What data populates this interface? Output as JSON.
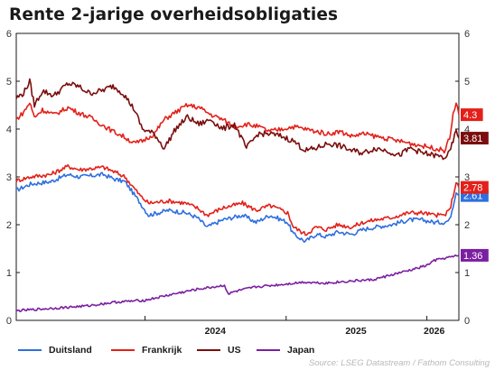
{
  "title": "Rente 2-jarige overheidsobligaties",
  "source": "Source: LSEG Datastream / Fathom Consulting",
  "chart_data": {
    "type": "line",
    "ylim": [
      0,
      6
    ],
    "yticks": [
      "0",
      "1",
      "2",
      "3",
      "4",
      "5",
      "6"
    ],
    "xlim": [
      "2023-02-01",
      "2026-03-25"
    ],
    "xticks": [
      {
        "label": "2024",
        "at": "2024-07-01"
      },
      {
        "label": "2025",
        "at": "2025-07-01"
      },
      {
        "label": "2026",
        "at": "2026-01-20"
      }
    ],
    "grid": false,
    "legend_position": "bottom",
    "series": [
      {
        "name": "Duitsland",
        "color": "#2e6fdf",
        "end_label": "2.61",
        "points": [
          [
            "2023-02-01",
            2.72
          ],
          [
            "2023-03-10",
            2.85
          ],
          [
            "2023-05-01",
            2.9
          ],
          [
            "2023-06-15",
            3.05
          ],
          [
            "2023-07-15",
            3.0
          ],
          [
            "2023-09-15",
            3.05
          ],
          [
            "2023-10-15",
            2.95
          ],
          [
            "2023-11-10",
            2.9
          ],
          [
            "2023-12-20",
            2.45
          ],
          [
            "2024-01-10",
            2.2
          ],
          [
            "2024-03-01",
            2.3
          ],
          [
            "2024-04-15",
            2.25
          ],
          [
            "2024-05-15",
            2.15
          ],
          [
            "2024-06-10",
            1.95
          ],
          [
            "2024-07-20",
            2.1
          ],
          [
            "2024-08-15",
            2.15
          ],
          [
            "2024-09-10",
            2.2
          ],
          [
            "2024-10-15",
            2.05
          ],
          [
            "2024-11-20",
            2.2
          ],
          [
            "2025-01-05",
            2.05
          ],
          [
            "2025-01-20",
            1.8
          ],
          [
            "2025-02-20",
            1.65
          ],
          [
            "2025-03-20",
            1.8
          ],
          [
            "2025-04-15",
            1.75
          ],
          [
            "2025-05-15",
            1.85
          ],
          [
            "2025-06-20",
            1.8
          ],
          [
            "2025-07-20",
            1.9
          ],
          [
            "2025-08-20",
            1.95
          ],
          [
            "2025-10-01",
            2.0
          ],
          [
            "2025-11-15",
            2.1
          ],
          [
            "2025-12-20",
            2.1
          ],
          [
            "2026-01-20",
            2.05
          ],
          [
            "2026-02-15",
            2.05
          ],
          [
            "2026-03-01",
            2.1
          ],
          [
            "2026-03-10",
            2.4
          ],
          [
            "2026-03-18",
            2.7
          ],
          [
            "2026-03-25",
            2.61
          ]
        ]
      },
      {
        "name": "Frankrijk",
        "color": "#e32019",
        "end_label": "2.78",
        "points": [
          [
            "2023-02-01",
            2.92
          ],
          [
            "2023-03-10",
            3.0
          ],
          [
            "2023-05-01",
            3.05
          ],
          [
            "2023-06-15",
            3.22
          ],
          [
            "2023-07-15",
            3.15
          ],
          [
            "2023-09-15",
            3.2
          ],
          [
            "2023-10-15",
            3.1
          ],
          [
            "2023-11-10",
            3.0
          ],
          [
            "2023-12-20",
            2.6
          ],
          [
            "2024-01-10",
            2.45
          ],
          [
            "2024-03-01",
            2.5
          ],
          [
            "2024-04-15",
            2.45
          ],
          [
            "2024-05-15",
            2.35
          ],
          [
            "2024-06-10",
            2.2
          ],
          [
            "2024-07-20",
            2.35
          ],
          [
            "2024-08-15",
            2.4
          ],
          [
            "2024-09-10",
            2.45
          ],
          [
            "2024-10-15",
            2.3
          ],
          [
            "2024-11-20",
            2.4
          ],
          [
            "2025-01-05",
            2.25
          ],
          [
            "2025-01-20",
            1.95
          ],
          [
            "2025-02-20",
            1.8
          ],
          [
            "2025-03-20",
            1.95
          ],
          [
            "2025-04-15",
            1.9
          ],
          [
            "2025-05-15",
            2.0
          ],
          [
            "2025-06-20",
            1.95
          ],
          [
            "2025-07-20",
            2.05
          ],
          [
            "2025-08-20",
            2.1
          ],
          [
            "2025-10-01",
            2.15
          ],
          [
            "2025-11-15",
            2.25
          ],
          [
            "2025-12-20",
            2.25
          ],
          [
            "2026-01-20",
            2.2
          ],
          [
            "2026-02-15",
            2.2
          ],
          [
            "2026-03-01",
            2.3
          ],
          [
            "2026-03-10",
            2.6
          ],
          [
            "2026-03-18",
            2.9
          ],
          [
            "2026-03-25",
            2.78
          ]
        ]
      },
      {
        "name": "US",
        "color": "#7a0d0d",
        "end_label": "3.81",
        "points": [
          [
            "2023-02-01",
            4.65
          ],
          [
            "2023-02-20",
            4.75
          ],
          [
            "2023-03-08",
            5.0
          ],
          [
            "2023-03-20",
            4.5
          ],
          [
            "2023-04-10",
            4.8
          ],
          [
            "2023-05-10",
            4.7
          ],
          [
            "2023-06-15",
            4.95
          ],
          [
            "2023-07-10",
            4.9
          ],
          [
            "2023-08-10",
            4.75
          ],
          [
            "2023-09-10",
            4.8
          ],
          [
            "2023-10-10",
            4.9
          ],
          [
            "2023-11-05",
            4.75
          ],
          [
            "2023-12-05",
            4.4
          ],
          [
            "2023-12-25",
            4.0
          ],
          [
            "2024-01-25",
            3.9
          ],
          [
            "2024-02-20",
            3.6
          ],
          [
            "2024-03-20",
            4.0
          ],
          [
            "2024-04-20",
            4.25
          ],
          [
            "2024-05-20",
            4.1
          ],
          [
            "2024-06-20",
            4.2
          ],
          [
            "2024-07-20",
            4.0
          ],
          [
            "2024-08-20",
            4.1
          ],
          [
            "2024-09-20",
            3.6
          ],
          [
            "2024-10-20",
            3.9
          ],
          [
            "2024-11-20",
            3.9
          ],
          [
            "2024-12-20",
            3.85
          ],
          [
            "2025-01-20",
            3.75
          ],
          [
            "2025-02-20",
            3.55
          ],
          [
            "2025-03-20",
            3.6
          ],
          [
            "2025-04-20",
            3.7
          ],
          [
            "2025-05-20",
            3.65
          ],
          [
            "2025-06-20",
            3.55
          ],
          [
            "2025-07-20",
            3.5
          ],
          [
            "2025-08-20",
            3.6
          ],
          [
            "2025-09-20",
            3.55
          ],
          [
            "2025-10-20",
            3.45
          ],
          [
            "2025-11-20",
            3.6
          ],
          [
            "2025-12-20",
            3.5
          ],
          [
            "2026-01-20",
            3.45
          ],
          [
            "2026-02-15",
            3.4
          ],
          [
            "2026-03-01",
            3.5
          ],
          [
            "2026-03-10",
            3.75
          ],
          [
            "2026-03-18",
            3.95
          ],
          [
            "2026-03-25",
            3.81
          ]
        ]
      },
      {
        "name": "",
        "color": "#e32019",
        "end_label": "4.3",
        "points": [
          [
            "2023-02-01",
            4.2
          ],
          [
            "2023-02-20",
            4.35
          ],
          [
            "2023-03-08",
            4.55
          ],
          [
            "2023-03-20",
            4.25
          ],
          [
            "2023-04-10",
            4.4
          ],
          [
            "2023-05-10",
            4.3
          ],
          [
            "2023-06-15",
            4.45
          ],
          [
            "2023-07-10",
            4.35
          ],
          [
            "2023-08-10",
            4.25
          ],
          [
            "2023-09-10",
            4.1
          ],
          [
            "2023-10-10",
            3.95
          ],
          [
            "2023-11-05",
            3.85
          ],
          [
            "2023-12-05",
            3.7
          ],
          [
            "2023-12-25",
            3.75
          ],
          [
            "2024-01-25",
            3.9
          ],
          [
            "2024-02-20",
            4.2
          ],
          [
            "2024-03-20",
            4.35
          ],
          [
            "2024-04-20",
            4.5
          ],
          [
            "2024-05-20",
            4.45
          ],
          [
            "2024-06-20",
            4.3
          ],
          [
            "2024-07-20",
            4.2
          ],
          [
            "2024-08-20",
            4.05
          ],
          [
            "2024-09-20",
            4.1
          ],
          [
            "2024-10-20",
            4.05
          ],
          [
            "2024-11-20",
            3.95
          ],
          [
            "2024-12-20",
            4.0
          ],
          [
            "2025-01-20",
            4.05
          ],
          [
            "2025-02-20",
            4.0
          ],
          [
            "2025-03-20",
            3.95
          ],
          [
            "2025-04-20",
            3.9
          ],
          [
            "2025-05-20",
            3.95
          ],
          [
            "2025-06-20",
            3.85
          ],
          [
            "2025-07-20",
            3.9
          ],
          [
            "2025-08-20",
            3.85
          ],
          [
            "2025-09-20",
            3.8
          ],
          [
            "2025-10-20",
            3.75
          ],
          [
            "2025-11-20",
            3.7
          ],
          [
            "2025-12-20",
            3.65
          ],
          [
            "2026-01-20",
            3.6
          ],
          [
            "2026-02-15",
            3.55
          ],
          [
            "2026-03-01",
            3.8
          ],
          [
            "2026-03-10",
            4.3
          ],
          [
            "2026-03-18",
            4.55
          ],
          [
            "2026-03-25",
            4.3
          ]
        ]
      },
      {
        "name": "Japan",
        "color": "#7b1fa2",
        "end_label": "1.36",
        "points": [
          [
            "2023-02-01",
            0.2
          ],
          [
            "2023-05-01",
            0.25
          ],
          [
            "2023-08-01",
            0.3
          ],
          [
            "2023-10-15",
            0.38
          ],
          [
            "2024-01-01",
            0.42
          ],
          [
            "2024-03-15",
            0.55
          ],
          [
            "2024-05-15",
            0.65
          ],
          [
            "2024-07-25",
            0.73
          ],
          [
            "2024-08-05",
            0.55
          ],
          [
            "2024-08-20",
            0.6
          ],
          [
            "2024-10-15",
            0.7
          ],
          [
            "2024-12-20",
            0.75
          ],
          [
            "2025-02-15",
            0.8
          ],
          [
            "2025-04-15",
            0.78
          ],
          [
            "2025-06-15",
            0.82
          ],
          [
            "2025-08-15",
            0.85
          ],
          [
            "2025-10-01",
            0.95
          ],
          [
            "2025-11-20",
            1.05
          ],
          [
            "2026-01-01",
            1.15
          ],
          [
            "2026-01-20",
            1.25
          ],
          [
            "2026-02-15",
            1.3
          ],
          [
            "2026-03-10",
            1.33
          ],
          [
            "2026-03-25",
            1.36
          ]
        ]
      }
    ]
  }
}
